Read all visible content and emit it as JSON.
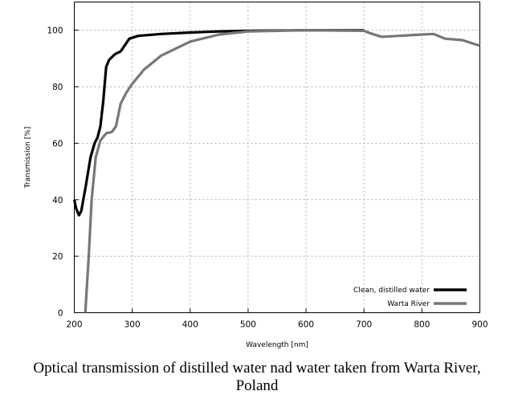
{
  "chart_data": {
    "type": "line",
    "title": "",
    "xlabel": "Wavelength [nm]",
    "ylabel": "Transmission [%]",
    "xlim": [
      200,
      900
    ],
    "ylim": [
      0,
      110
    ],
    "xticks": [
      200,
      300,
      400,
      500,
      600,
      700,
      800,
      900
    ],
    "yticks": [
      0,
      20,
      40,
      60,
      80,
      100
    ],
    "grid": true,
    "legend_position": "bottom-right",
    "series": [
      {
        "name": "Clean, distilled water",
        "color": "#000000",
        "x": [
          200,
          203,
          208,
          212,
          220,
          228,
          235,
          240,
          245,
          250,
          255,
          260,
          270,
          280,
          285,
          295,
          310,
          350,
          400,
          450,
          500,
          600,
          700
        ],
        "y": [
          40,
          37,
          34.5,
          36,
          45,
          55,
          60,
          62,
          66,
          75,
          87,
          89.5,
          91.5,
          92.5,
          94,
          97,
          98,
          98.7,
          99.2,
          99.6,
          99.8,
          100,
          100
        ]
      },
      {
        "name": "Warta River",
        "color": "#777777",
        "x": [
          219,
          225,
          230,
          237,
          245,
          255,
          265,
          272,
          280,
          290,
          300,
          320,
          350,
          400,
          450,
          500,
          600,
          700,
          710,
          730,
          760,
          800,
          820,
          840,
          870,
          900
        ],
        "y": [
          0,
          20,
          40,
          55,
          61,
          63.5,
          64,
          66,
          74,
          78,
          81,
          86,
          91,
          96,
          98.5,
          99.6,
          100,
          99.8,
          99,
          97.7,
          98,
          98.5,
          98.7,
          97,
          96.5,
          94.5
        ]
      }
    ]
  },
  "caption": {
    "line1": "Optical transmission of distilled water nad water taken from Warta River,",
    "line2": "Poland"
  }
}
